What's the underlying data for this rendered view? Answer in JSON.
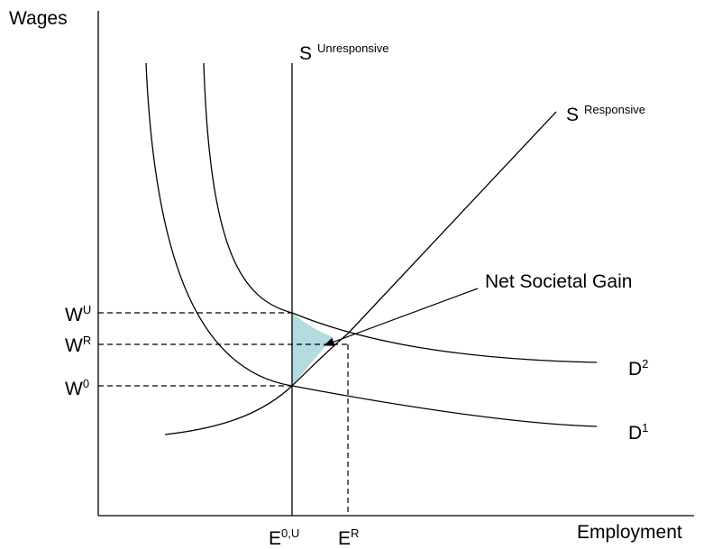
{
  "axes": {
    "y_label": "Wages",
    "x_label": "Employment"
  },
  "curves": {
    "s_unresponsive": {
      "base": "S",
      "sup": "Unresponsive"
    },
    "s_responsive": {
      "base": "S",
      "sup": "Responsive"
    },
    "d2": {
      "base": "D",
      "sup": "2"
    },
    "d1": {
      "base": "D",
      "sup": "1"
    }
  },
  "annotation": "Net Societal Gain",
  "wages": {
    "wu": {
      "base": "W",
      "sup": "U"
    },
    "wr": {
      "base": "W",
      "sup": "R"
    },
    "w0": {
      "base": "W",
      "sup": "0"
    }
  },
  "employment": {
    "e0u": {
      "base": "E",
      "sup": "0,U"
    },
    "er": {
      "base": "E",
      "sup": "R"
    }
  }
}
